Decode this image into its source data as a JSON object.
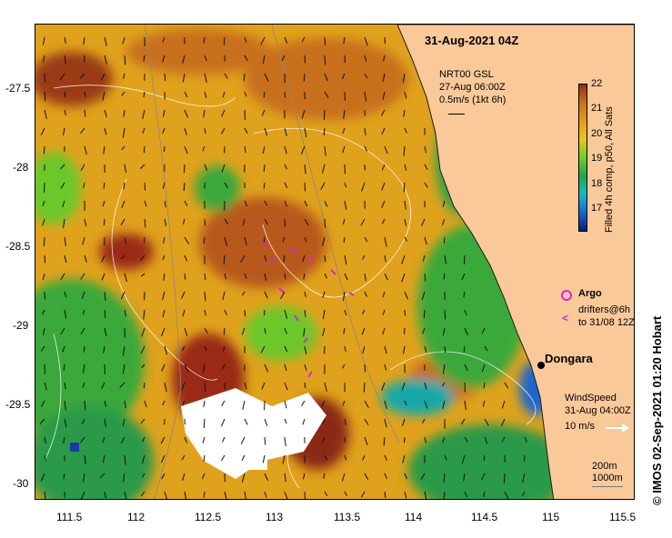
{
  "header": {
    "timestamp": "31-Aug-2021 04Z"
  },
  "axes": {
    "x_ticks": [
      "111.5",
      "112",
      "112.5",
      "113",
      "113.5",
      "114",
      "114.5",
      "115",
      "115.5"
    ],
    "y_ticks": [
      "-27.5",
      "-28",
      "-28.5",
      "-29",
      "-29.5",
      "-30"
    ]
  },
  "colorbar": {
    "title": "Filled 4h comp, p50, All Sats",
    "ticks": [
      "22",
      "21",
      "20",
      "19",
      "18",
      "17"
    ],
    "colors": [
      "#0a1a7a",
      "#1a66cc",
      "#18b8c8",
      "#1aa84a",
      "#6ccc2a",
      "#e8c81a",
      "#e89a1a",
      "#c8701a",
      "#9a2a1a"
    ]
  },
  "annotations": {
    "gsl_title": "NRT00 GSL",
    "gsl_date": "27-Aug 06:00Z",
    "gsl_scale": "0.5m/s (1kt 6h)",
    "argo_label": "Argo",
    "drifters_line1": "drifters@6h",
    "drifters_line2": "to 31/08 12Z",
    "location_name": "Dongara",
    "wind_title": "WindSpeed",
    "wind_date": "31-Aug 04:00Z",
    "wind_scale": "10 m/s",
    "depth_1": "200m",
    "depth_2": "1000m"
  },
  "copyright": "© IMOS 02-Sep-2021 01:20 Hobart",
  "land_color": "#f9c99a",
  "argo_color": "#e020e0"
}
